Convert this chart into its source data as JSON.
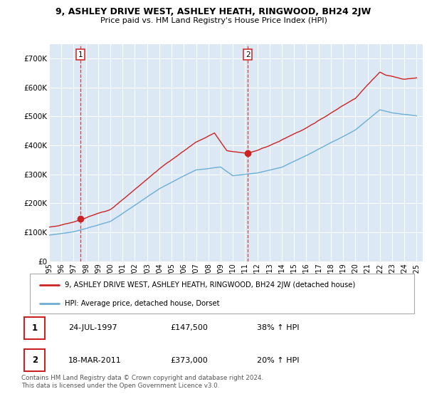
{
  "title": "9, ASHLEY DRIVE WEST, ASHLEY HEATH, RINGWOOD, BH24 2JW",
  "subtitle": "Price paid vs. HM Land Registry's House Price Index (HPI)",
  "ylim": [
    0,
    750000
  ],
  "yticks": [
    0,
    100000,
    200000,
    300000,
    400000,
    500000,
    600000,
    700000
  ],
  "ytick_labels": [
    "£0",
    "£100K",
    "£200K",
    "£300K",
    "£400K",
    "£500K",
    "£600K",
    "£700K"
  ],
  "xlim_start": 1995.3,
  "xlim_end": 2025.5,
  "hpi_color": "#6baed6",
  "price_color": "#cc2222",
  "marker_color": "#cc2222",
  "background_color": "#dce9f5",
  "grid_color": "#ffffff",
  "sale1_x": 1997.56,
  "sale1_y": 147500,
  "sale1_label": "1",
  "sale2_x": 2011.22,
  "sale2_y": 373000,
  "sale2_label": "2",
  "vline_color": "#cc2222",
  "legend_label_price": "9, ASHLEY DRIVE WEST, ASHLEY HEATH, RINGWOOD, BH24 2JW (detached house)",
  "legend_label_hpi": "HPI: Average price, detached house, Dorset",
  "table_rows": [
    {
      "num": "1",
      "date": "24-JUL-1997",
      "price": "£147,500",
      "change": "38% ↑ HPI"
    },
    {
      "num": "2",
      "date": "18-MAR-2011",
      "price": "£373,000",
      "change": "20% ↑ HPI"
    }
  ],
  "footer": "Contains HM Land Registry data © Crown copyright and database right 2024.\nThis data is licensed under the Open Government Licence v3.0.",
  "xtick_years": [
    1995,
    1996,
    1997,
    1998,
    1999,
    2000,
    2001,
    2002,
    2003,
    2004,
    2005,
    2006,
    2007,
    2008,
    2009,
    2010,
    2011,
    2012,
    2013,
    2014,
    2015,
    2016,
    2017,
    2018,
    2019,
    2020,
    2021,
    2022,
    2023,
    2024,
    2025
  ]
}
